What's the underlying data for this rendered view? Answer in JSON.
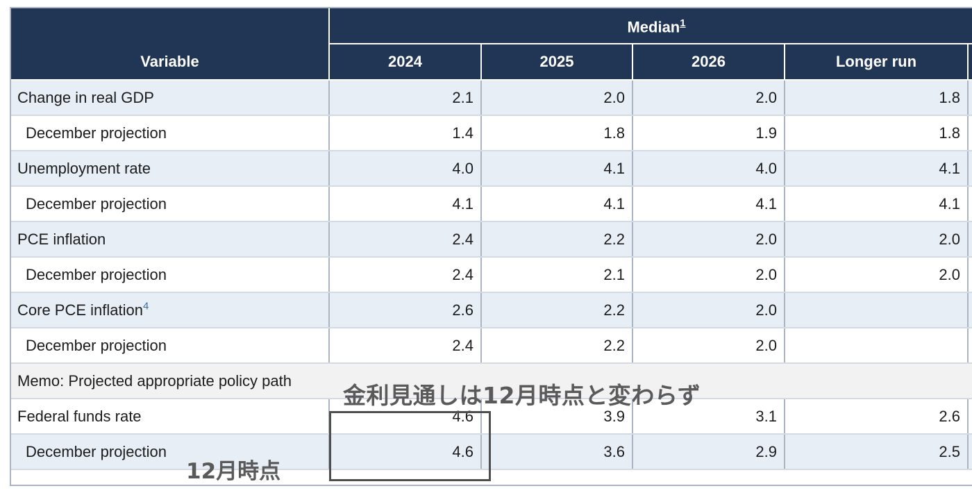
{
  "table": {
    "header": {
      "variable_label": "Variable",
      "median_label": "Median",
      "median_footnote": "1",
      "columns": [
        "2024",
        "2025",
        "2026",
        "Longer run"
      ]
    },
    "rows": [
      {
        "label": "Change in real GDP",
        "values": [
          "2.1",
          "2.0",
          "2.0",
          "1.8"
        ]
      },
      {
        "label": "December projection",
        "values": [
          "1.4",
          "1.8",
          "1.9",
          "1.8"
        ]
      },
      {
        "label": "Unemployment rate",
        "values": [
          "4.0",
          "4.1",
          "4.0",
          "4.1"
        ]
      },
      {
        "label": "December projection",
        "values": [
          "4.1",
          "4.1",
          "4.1",
          "4.1"
        ]
      },
      {
        "label": "PCE inflation",
        "values": [
          "2.4",
          "2.2",
          "2.0",
          "2.0"
        ]
      },
      {
        "label": "December projection",
        "values": [
          "2.4",
          "2.1",
          "2.0",
          "2.0"
        ]
      },
      {
        "label": "Core PCE inflation",
        "footnote": "4",
        "values": [
          "2.6",
          "2.2",
          "2.0",
          ""
        ]
      },
      {
        "label": "December projection",
        "values": [
          "2.4",
          "2.2",
          "2.0",
          ""
        ]
      },
      {
        "label": "Memo: Projected appropriate policy path"
      },
      {
        "label": "Federal funds rate",
        "values": [
          "4.6",
          "3.9",
          "3.1",
          "2.6"
        ]
      },
      {
        "label": "December projection",
        "values": [
          "4.6",
          "3.6",
          "2.9",
          "2.5"
        ]
      }
    ]
  },
  "annotations": {
    "main": "金利見通しは12月時点と変わらず",
    "december": "12月時点"
  }
}
